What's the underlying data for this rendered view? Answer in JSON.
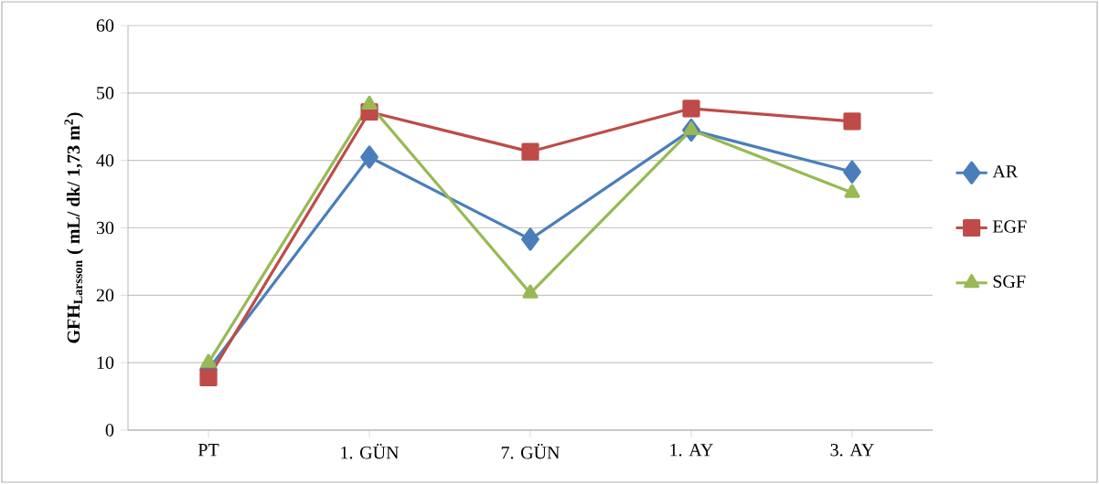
{
  "chart_data": {
    "type": "line",
    "ylabel": "GFH$_{Larsson}$ ( mL/ dk/ 1,73 m$^{2}$)",
    "categories": [
      "PT",
      "1. GÜN",
      "7. GÜN",
      "1. AY",
      "3. AY"
    ],
    "series": [
      {
        "name": "AR",
        "color": "#4a7ebb",
        "marker": "diamond",
        "values": [
          9,
          40.5,
          28.3,
          44.5,
          38.3
        ]
      },
      {
        "name": "EGF",
        "color": "#be4b48",
        "marker": "square",
        "values": [
          7.8,
          47.2,
          41.3,
          47.7,
          45.8
        ]
      },
      {
        "name": "SGF",
        "color": "#98b954",
        "marker": "triangle",
        "values": [
          10,
          48.3,
          20.3,
          44.5,
          35.2
        ]
      }
    ],
    "ylim": [
      0,
      60
    ],
    "yticks": [
      0,
      10,
      20,
      30,
      40,
      50,
      60
    ],
    "grid": "y",
    "legend": "right"
  }
}
